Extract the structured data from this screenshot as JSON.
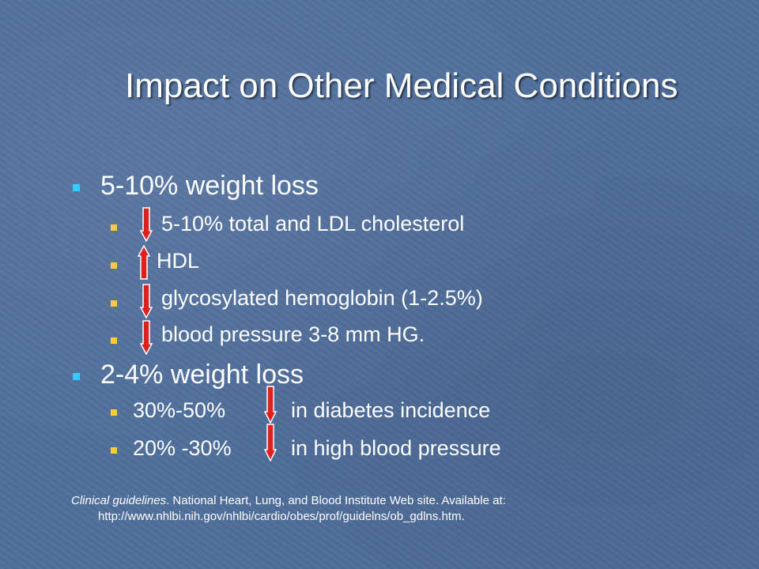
{
  "slide": {
    "title": "Impact on Other Medical Conditions",
    "groups": [
      {
        "heading": "5-10% weight loss",
        "items": [
          {
            "arrow": "down",
            "prefix": "",
            "text": "5-10% total and LDL cholesterol"
          },
          {
            "arrow": "up",
            "prefix": "",
            "text": "HDL"
          },
          {
            "arrow": "down",
            "prefix": "",
            "text": "glycosylated hemoglobin (1-2.5%)"
          },
          {
            "arrow": "down",
            "prefix": "",
            "text": "blood pressure 3-8 mm HG."
          }
        ]
      },
      {
        "heading": "2-4% weight loss",
        "items": [
          {
            "arrow": "down",
            "prefix": "30%-50%",
            "text": "in diabetes incidence"
          },
          {
            "arrow": "down",
            "prefix": "20% -30%",
            "text": "in high blood pressure"
          }
        ]
      }
    ],
    "reference": {
      "source": "Clinical guidelines",
      "text": ". National Heart, Lung, and Blood Institute Web site. Available at:",
      "url": "http://www.nhlbi.nih.gov/nhlbi/cardio/obes/prof/guidelns/ob_gdlns.htm."
    }
  },
  "colors": {
    "background": "#4f6f9c",
    "bullet_level1": "#33ccff",
    "bullet_level2": "#ffcc33",
    "arrow": "#e0201f",
    "text": "#ffffff"
  },
  "icons": [
    "square-bullet",
    "down-arrow-icon",
    "up-arrow-icon"
  ]
}
